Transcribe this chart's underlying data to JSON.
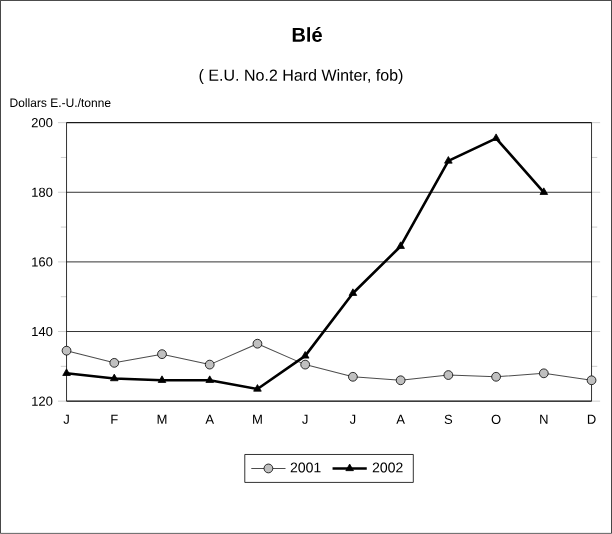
{
  "chart_data": {
    "type": "line",
    "title": "Blé",
    "subtitle": "( E.U. No.2 Hard Winter, fob)",
    "ylabel": "Dollars E.-U./tonne",
    "categories": [
      "J",
      "F",
      "M",
      "A",
      "M",
      "J",
      "J",
      "A",
      "S",
      "O",
      "N",
      "D"
    ],
    "series": [
      {
        "name": "2001",
        "color": "#c0c0c0",
        "marker": "circle",
        "values": [
          134.5,
          131,
          133.5,
          130.5,
          136.5,
          130.5,
          127,
          126,
          127.5,
          127,
          128,
          126
        ]
      },
      {
        "name": "2002",
        "color": "#000000",
        "marker": "triangle",
        "values": [
          128,
          126.5,
          126,
          126,
          123.5,
          133,
          151,
          164.5,
          189,
          195.5,
          180,
          null
        ]
      }
    ],
    "ylim": [
      120,
      200
    ],
    "yticks": [
      120,
      140,
      160,
      180,
      200
    ],
    "grid": "y",
    "legend": "bottom"
  }
}
